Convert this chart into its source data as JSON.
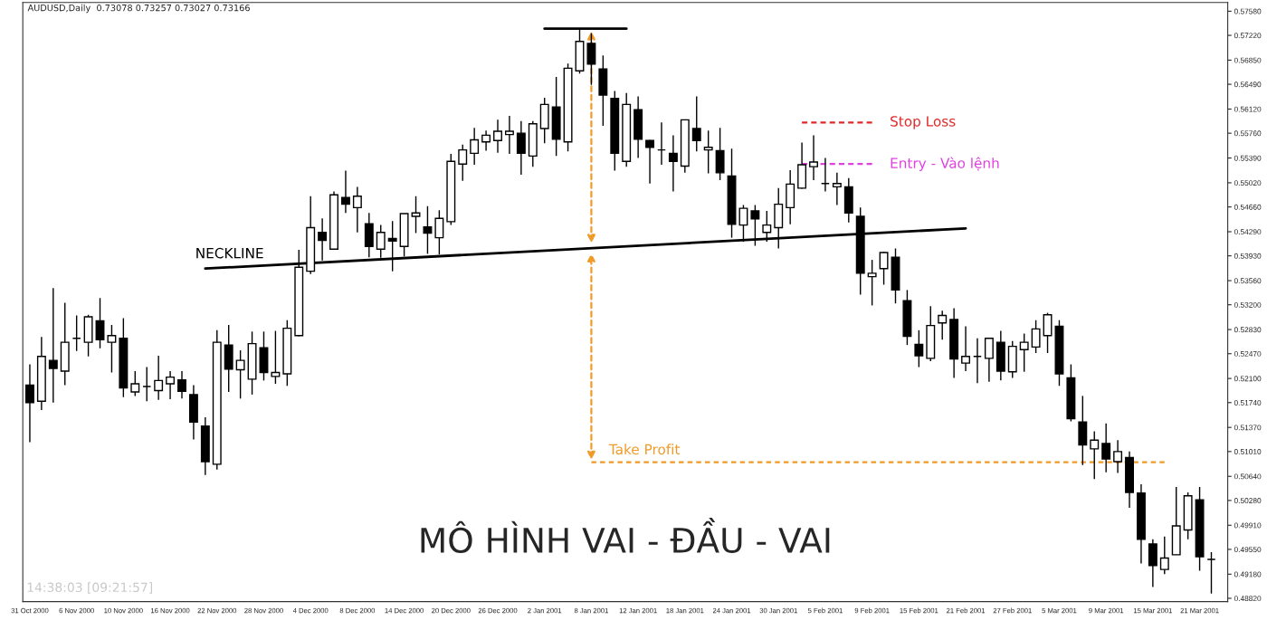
{
  "chart_data": {
    "type": "candlestick",
    "title": "AUDUSD,Daily  0.73078 0.73257 0.73027 0.73166",
    "color": "#000000",
    "categories": [
      "31 Oct 2000",
      null,
      null,
      null,
      "6 Nov 2000",
      null,
      null,
      null,
      "10 Nov 2000",
      null,
      null,
      null,
      "16 Nov 2000",
      null,
      null,
      null,
      "22 Nov 2000",
      null,
      null,
      null,
      "28 Nov 2000",
      null,
      null,
      null,
      "4 Dec 2000",
      null,
      null,
      null,
      "8 Dec 2000",
      null,
      null,
      null,
      "14 Dec 2000",
      null,
      null,
      null,
      "20 Dec 2000",
      null,
      null,
      null,
      "26 Dec 2000",
      null,
      null,
      null,
      "2 Jan 2001",
      null,
      null,
      null,
      "8 Jan 2001",
      null,
      null,
      null,
      "12 Jan 2001",
      null,
      null,
      null,
      "18 Jan 2001",
      null,
      null,
      null,
      "24 Jan 2001",
      null,
      null,
      null,
      "30 Jan 2001",
      null,
      null,
      null,
      "5 Feb 2001",
      null,
      null,
      null,
      "9 Feb 2001",
      null,
      null,
      null,
      "15 Feb 2001",
      null,
      null,
      null,
      "21 Feb 2001",
      null,
      null,
      null,
      "27 Feb 2001",
      null,
      null,
      null,
      "5 Mar 2001",
      null,
      null,
      null,
      "9 Mar 2001",
      null,
      null,
      null,
      "15 Mar 2001",
      null,
      null,
      null,
      "21 Mar 2001",
      null
    ],
    "ohlc": [
      [
        0.52,
        0.5231,
        0.5115,
        0.5174
      ],
      [
        0.5176,
        0.5272,
        0.5163,
        0.5243
      ],
      [
        0.5237,
        0.5345,
        0.5174,
        0.5225
      ],
      [
        0.5221,
        0.5323,
        0.52,
        0.5264
      ],
      [
        0.527,
        0.5304,
        0.5251,
        0.527
      ],
      [
        0.5264,
        0.5305,
        0.5243,
        0.5302
      ],
      [
        0.5296,
        0.533,
        0.5255,
        0.5268
      ],
      [
        0.5264,
        0.529,
        0.5219,
        0.5274
      ],
      [
        0.527,
        0.53,
        0.5182,
        0.5196
      ],
      [
        0.519,
        0.5221,
        0.5184,
        0.5202
      ],
      [
        0.5198,
        0.5227,
        0.5176,
        0.5198
      ],
      [
        0.5192,
        0.5244,
        0.5178,
        0.5207
      ],
      [
        0.5202,
        0.5221,
        0.5179,
        0.5212
      ],
      [
        0.5208,
        0.5221,
        0.518,
        0.5191
      ],
      [
        0.5186,
        0.52,
        0.5119,
        0.5145
      ],
      [
        0.5139,
        0.5152,
        0.5066,
        0.5086
      ],
      [
        0.5082,
        0.5282,
        0.5074,
        0.5264
      ],
      [
        0.526,
        0.529,
        0.519,
        0.5224
      ],
      [
        0.5223,
        0.5252,
        0.518,
        0.5237
      ],
      [
        0.5209,
        0.528,
        0.5186,
        0.5262
      ],
      [
        0.5256,
        0.528,
        0.5207,
        0.5219
      ],
      [
        0.5213,
        0.5281,
        0.5202,
        0.5219
      ],
      [
        0.5217,
        0.5297,
        0.5199,
        0.5285
      ],
      [
        0.5274,
        0.5402,
        0.5273,
        0.5376
      ],
      [
        0.537,
        0.5482,
        0.5366,
        0.5435
      ],
      [
        0.5428,
        0.5449,
        0.5386,
        0.5416
      ],
      [
        0.5403,
        0.5489,
        0.5403,
        0.5484
      ],
      [
        0.548,
        0.552,
        0.5457,
        0.547
      ],
      [
        0.5465,
        0.5496,
        0.5428,
        0.5482
      ],
      [
        0.5441,
        0.5457,
        0.5391,
        0.5407
      ],
      [
        0.5403,
        0.5439,
        0.539,
        0.5428
      ],
      [
        0.5419,
        0.5445,
        0.537,
        0.5415
      ],
      [
        0.5407,
        0.5456,
        0.5392,
        0.5456
      ],
      [
        0.5452,
        0.5482,
        0.5427,
        0.5457
      ],
      [
        0.5436,
        0.5467,
        0.5396,
        0.5427
      ],
      [
        0.542,
        0.5461,
        0.5395,
        0.5449
      ],
      [
        0.5444,
        0.5545,
        0.5439,
        0.5534
      ],
      [
        0.553,
        0.5559,
        0.5505,
        0.5551
      ],
      [
        0.5546,
        0.5584,
        0.5529,
        0.5566
      ],
      [
        0.5563,
        0.558,
        0.555,
        0.5573
      ],
      [
        0.5565,
        0.5596,
        0.5547,
        0.5579
      ],
      [
        0.5574,
        0.5602,
        0.5545,
        0.5579
      ],
      [
        0.5576,
        0.5594,
        0.5514,
        0.5546
      ],
      [
        0.5542,
        0.5594,
        0.5526,
        0.559
      ],
      [
        0.5583,
        0.5629,
        0.5561,
        0.5619
      ],
      [
        0.5615,
        0.566,
        0.5542,
        0.5567
      ],
      [
        0.5563,
        0.568,
        0.5549,
        0.5673
      ],
      [
        0.5669,
        0.5732,
        0.5665,
        0.5713
      ],
      [
        0.571,
        0.5725,
        0.5648,
        0.5679
      ],
      [
        0.5672,
        0.5692,
        0.5587,
        0.5633
      ],
      [
        0.5628,
        0.5639,
        0.552,
        0.5546
      ],
      [
        0.5534,
        0.5636,
        0.5526,
        0.5619
      ],
      [
        0.5611,
        0.5631,
        0.5539,
        0.5567
      ],
      [
        0.5565,
        0.5566,
        0.5501,
        0.5555
      ],
      [
        0.5551,
        0.5592,
        0.5529,
        0.5551
      ],
      [
        0.5546,
        0.5573,
        0.5489,
        0.5534
      ],
      [
        0.5527,
        0.5596,
        0.5517,
        0.5596
      ],
      [
        0.5583,
        0.5631,
        0.5549,
        0.5565
      ],
      [
        0.5551,
        0.558,
        0.5516,
        0.5555
      ],
      [
        0.555,
        0.5584,
        0.5506,
        0.5517
      ],
      [
        0.5512,
        0.5553,
        0.542,
        0.544
      ],
      [
        0.5439,
        0.5469,
        0.5414,
        0.5464
      ],
      [
        0.546,
        0.5469,
        0.5408,
        0.5448
      ],
      [
        0.5428,
        0.546,
        0.5414,
        0.5439
      ],
      [
        0.5435,
        0.5494,
        0.5404,
        0.547
      ],
      [
        0.5465,
        0.5521,
        0.544,
        0.55
      ],
      [
        0.5494,
        0.5562,
        0.5493,
        0.5529
      ],
      [
        0.5526,
        0.5573,
        0.5506,
        0.5533
      ],
      [
        0.5501,
        0.5539,
        0.5489,
        0.5501
      ],
      [
        0.5496,
        0.5517,
        0.5469,
        0.5501
      ],
      [
        0.5496,
        0.5509,
        0.5443,
        0.5457
      ],
      [
        0.5452,
        0.5465,
        0.5335,
        0.5367
      ],
      [
        0.5362,
        0.5387,
        0.5319,
        0.5367
      ],
      [
        0.5374,
        0.5399,
        0.535,
        0.5398
      ],
      [
        0.5391,
        0.5404,
        0.5322,
        0.5342
      ],
      [
        0.5326,
        0.5342,
        0.526,
        0.5273
      ],
      [
        0.5261,
        0.5282,
        0.5227,
        0.5244
      ],
      [
        0.524,
        0.5318,
        0.5236,
        0.5289
      ],
      [
        0.5293,
        0.5311,
        0.5268,
        0.5304
      ],
      [
        0.5298,
        0.5315,
        0.5211,
        0.5239
      ],
      [
        0.5233,
        0.5288,
        0.5221,
        0.5243
      ],
      [
        0.5243,
        0.527,
        0.5203,
        0.5243
      ],
      [
        0.524,
        0.527,
        0.5205,
        0.527
      ],
      [
        0.5264,
        0.5281,
        0.5207,
        0.5221
      ],
      [
        0.522,
        0.5266,
        0.5211,
        0.5258
      ],
      [
        0.5253,
        0.5277,
        0.522,
        0.5264
      ],
      [
        0.5257,
        0.5297,
        0.5248,
        0.5284
      ],
      [
        0.5274,
        0.5308,
        0.5248,
        0.5305
      ],
      [
        0.5288,
        0.5297,
        0.5199,
        0.5217
      ],
      [
        0.5211,
        0.5231,
        0.5146,
        0.515
      ],
      [
        0.5145,
        0.5184,
        0.5081,
        0.5111
      ],
      [
        0.5105,
        0.5131,
        0.506,
        0.5118
      ],
      [
        0.5113,
        0.5143,
        0.507,
        0.509
      ],
      [
        0.5086,
        0.5118,
        0.5069,
        0.5101
      ],
      [
        0.5092,
        0.5101,
        0.5017,
        0.504
      ],
      [
        0.5039,
        0.5052,
        0.4934,
        0.497
      ],
      [
        0.4963,
        0.497,
        0.4899,
        0.4931
      ],
      [
        0.4925,
        0.4974,
        0.4918,
        0.4942
      ],
      [
        0.4947,
        0.5048,
        0.4947,
        0.499
      ],
      [
        0.4984,
        0.504,
        0.497,
        0.5035
      ],
      [
        0.5029,
        0.5048,
        0.4923,
        0.4944
      ],
      [
        0.494,
        0.4951,
        0.4889,
        0.494
      ]
    ],
    "series": [
      {
        "type": "line",
        "name": "NECKLINE",
        "color": "#000000",
        "line_style": "solid",
        "values": [
          null,
          null,
          null,
          null,
          null,
          null,
          null,
          null,
          null,
          null,
          null,
          null,
          null,
          null,
          null,
          0.5374,
          null,
          null,
          null,
          null,
          null,
          null,
          null,
          null,
          null,
          null,
          null,
          null,
          null,
          null,
          null,
          null,
          null,
          null,
          null,
          null,
          null,
          null,
          null,
          null,
          null,
          null,
          null,
          null,
          null,
          null,
          null,
          null,
          null,
          null,
          null,
          null,
          null,
          null,
          null,
          null,
          null,
          null,
          null,
          null,
          null,
          null,
          null,
          null,
          null,
          null,
          null,
          null,
          null,
          null,
          null,
          null,
          null,
          null,
          null,
          null,
          null,
          null,
          null,
          null,
          0.5434,
          null,
          null,
          null,
          null,
          null,
          null,
          null,
          null,
          null,
          null,
          null,
          null,
          null,
          null,
          null,
          null,
          null,
          null,
          null,
          null,
          null
        ]
      },
      {
        "type": "line",
        "color": "#000000",
        "line_style": "solid",
        "values": [
          null,
          null,
          null,
          null,
          null,
          null,
          null,
          null,
          null,
          null,
          null,
          null,
          null,
          null,
          null,
          null,
          null,
          null,
          null,
          null,
          null,
          null,
          null,
          null,
          null,
          null,
          null,
          null,
          null,
          null,
          null,
          null,
          null,
          null,
          null,
          null,
          null,
          null,
          null,
          null,
          null,
          null,
          null,
          null,
          0.5732,
          null,
          null,
          null,
          null,
          null,
          null,
          0.5732,
          null,
          null,
          null,
          null,
          null,
          null,
          null,
          null,
          null,
          null,
          null,
          null,
          null,
          null,
          null,
          null,
          null,
          null,
          null,
          null,
          null,
          null,
          null,
          null,
          null,
          null,
          null,
          null,
          null,
          null,
          null,
          null,
          null,
          null,
          null,
          null,
          null,
          null,
          null,
          null,
          null,
          null,
          null,
          null,
          null,
          null,
          null,
          null,
          null,
          null
        ]
      },
      {
        "type": "line",
        "name": "Stop Loss",
        "color": "#e02828",
        "line_style": "dashed",
        "values": [
          null,
          null,
          null,
          null,
          null,
          null,
          null,
          null,
          null,
          null,
          null,
          null,
          null,
          null,
          null,
          null,
          null,
          null,
          null,
          null,
          null,
          null,
          null,
          null,
          null,
          null,
          null,
          null,
          null,
          null,
          null,
          null,
          null,
          null,
          null,
          null,
          null,
          null,
          null,
          null,
          null,
          null,
          null,
          null,
          null,
          null,
          null,
          null,
          null,
          null,
          null,
          null,
          null,
          null,
          null,
          null,
          null,
          null,
          null,
          null,
          null,
          null,
          null,
          null,
          null,
          null,
          0.5592,
          null,
          null,
          null,
          null,
          null,
          0.5592,
          null,
          null,
          null,
          null,
          null,
          null,
          null,
          null,
          null,
          null,
          null,
          null,
          null,
          null,
          null,
          null,
          null,
          null,
          null,
          null,
          null,
          null,
          null,
          null,
          null,
          null,
          null,
          null,
          null
        ]
      },
      {
        "type": "line",
        "name": "Entry - Vào lệnh",
        "color": "#e040e0",
        "line_style": "dashed",
        "values": [
          null,
          null,
          null,
          null,
          null,
          null,
          null,
          null,
          null,
          null,
          null,
          null,
          null,
          null,
          null,
          null,
          null,
          null,
          null,
          null,
          null,
          null,
          null,
          null,
          null,
          null,
          null,
          null,
          null,
          null,
          null,
          null,
          null,
          null,
          null,
          null,
          null,
          null,
          null,
          null,
          null,
          null,
          null,
          null,
          null,
          null,
          null,
          null,
          null,
          null,
          null,
          null,
          null,
          null,
          null,
          null,
          null,
          null,
          null,
          null,
          null,
          null,
          null,
          null,
          null,
          null,
          0.553,
          null,
          null,
          null,
          null,
          null,
          0.553,
          null,
          null,
          null,
          null,
          null,
          null,
          null,
          null,
          null,
          null,
          null,
          null,
          null,
          null,
          null,
          null,
          null,
          null,
          null,
          null,
          null,
          null,
          null,
          null,
          null,
          null,
          null,
          null,
          null
        ]
      },
      {
        "type": "line",
        "name": "Take Profit",
        "color": "#f09a28",
        "line_style": "dashed",
        "values": [
          null,
          null,
          null,
          null,
          null,
          null,
          null,
          null,
          null,
          null,
          null,
          null,
          null,
          null,
          null,
          null,
          null,
          null,
          null,
          null,
          null,
          null,
          null,
          null,
          null,
          null,
          null,
          null,
          null,
          null,
          null,
          null,
          null,
          null,
          null,
          null,
          null,
          null,
          null,
          null,
          null,
          null,
          null,
          null,
          null,
          null,
          null,
          null,
          0.5085,
          null,
          null,
          null,
          null,
          null,
          null,
          null,
          null,
          null,
          null,
          null,
          null,
          null,
          null,
          null,
          null,
          null,
          null,
          null,
          null,
          null,
          null,
          null,
          null,
          null,
          null,
          null,
          null,
          null,
          null,
          null,
          null,
          null,
          null,
          null,
          null,
          null,
          null,
          null,
          null,
          null,
          null,
          null,
          null,
          null,
          null,
          null,
          null,
          0.5085,
          null,
          null,
          null,
          null
        ]
      }
    ],
    "ylim": [
      0.4877,
      0.5771
    ],
    "yticks": [
      {
        "value": 0.5758,
        "label": "0.57580"
      },
      {
        "value": 0.5722,
        "label": "0.57220"
      },
      {
        "value": 0.5685,
        "label": "0.56850"
      },
      {
        "value": 0.5649,
        "label": "0.56490"
      },
      {
        "value": 0.5612,
        "label": "0.56120"
      },
      {
        "value": 0.5576,
        "label": "0.55760"
      },
      {
        "value": 0.5539,
        "label": "0.55390"
      },
      {
        "value": 0.5502,
        "label": "0.55020"
      },
      {
        "value": 0.5466,
        "label": "0.54660"
      },
      {
        "value": 0.5429,
        "label": "0.54290"
      },
      {
        "value": 0.5393,
        "label": "0.53930"
      },
      {
        "value": 0.5356,
        "label": "0.53560"
      },
      {
        "value": 0.532,
        "label": "0.53200"
      },
      {
        "value": 0.5283,
        "label": "0.52830"
      },
      {
        "value": 0.5247,
        "label": "0.52470"
      },
      {
        "value": 0.521,
        "label": "0.52100"
      },
      {
        "value": 0.5174,
        "label": "0.51740"
      },
      {
        "value": 0.5137,
        "label": "0.51370"
      },
      {
        "value": 0.5101,
        "label": "0.51010"
      },
      {
        "value": 0.5064,
        "label": "0.50640"
      },
      {
        "value": 0.5028,
        "label": "0.50280"
      },
      {
        "value": 0.4991,
        "label": "0.49910"
      },
      {
        "value": 0.4955,
        "label": "0.49550"
      },
      {
        "value": 0.4918,
        "label": "0.49180"
      },
      {
        "value": 0.4882,
        "label": "0.48820"
      }
    ],
    "annotations": [
      "MÔ HÌNH VAI - ĐẦU - VAI",
      "14:38:03 [09:21:57]"
    ]
  }
}
